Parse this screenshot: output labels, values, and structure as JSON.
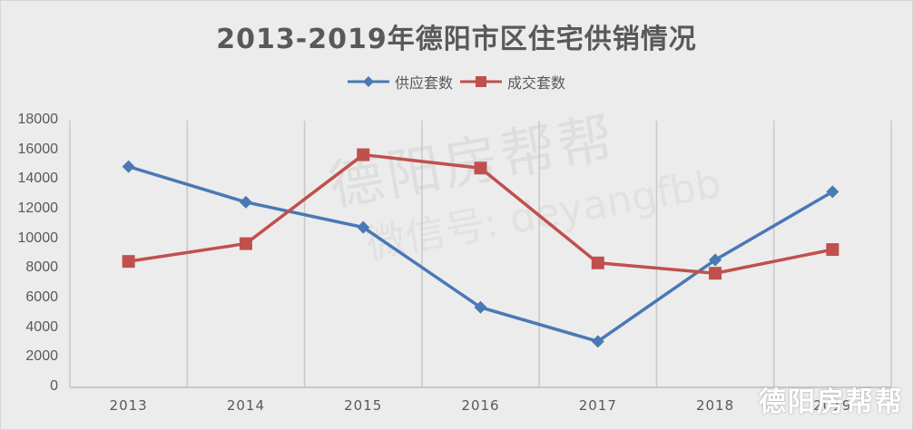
{
  "title": "2013-2019年德阳市区住宅供销情况",
  "legend": [
    {
      "label": "供应套数",
      "color": "#4a78b5",
      "marker": "diamond"
    },
    {
      "label": "成交套数",
      "color": "#c0504d",
      "marker": "square"
    }
  ],
  "watermark": "德阳房帮帮",
  "background_watermark": {
    "line1": "德阳房帮帮",
    "line2": "微信号: deyangfbb"
  },
  "chart_data": {
    "type": "line",
    "title": "2013-2019年德阳市区住宅供销情况",
    "xlabel": "",
    "ylabel": "",
    "categories": [
      "2013",
      "2014",
      "2015",
      "2016",
      "2017",
      "2018",
      "2019"
    ],
    "series": [
      {
        "name": "供应套数",
        "color": "#4a78b5",
        "marker": "diamond",
        "values": [
          14900,
          12500,
          10800,
          5400,
          3100,
          8600,
          13200
        ]
      },
      {
        "name": "成交套数",
        "color": "#c0504d",
        "marker": "square",
        "values": [
          8500,
          9700,
          15700,
          14800,
          8400,
          7700,
          9300
        ]
      }
    ],
    "ylim": [
      0,
      18000
    ],
    "yticks": [
      "0",
      "2000",
      "4000",
      "6000",
      "8000",
      "10000",
      "12000",
      "14000",
      "16000",
      "18000"
    ],
    "grid": "vertical",
    "legend_position": "top"
  }
}
